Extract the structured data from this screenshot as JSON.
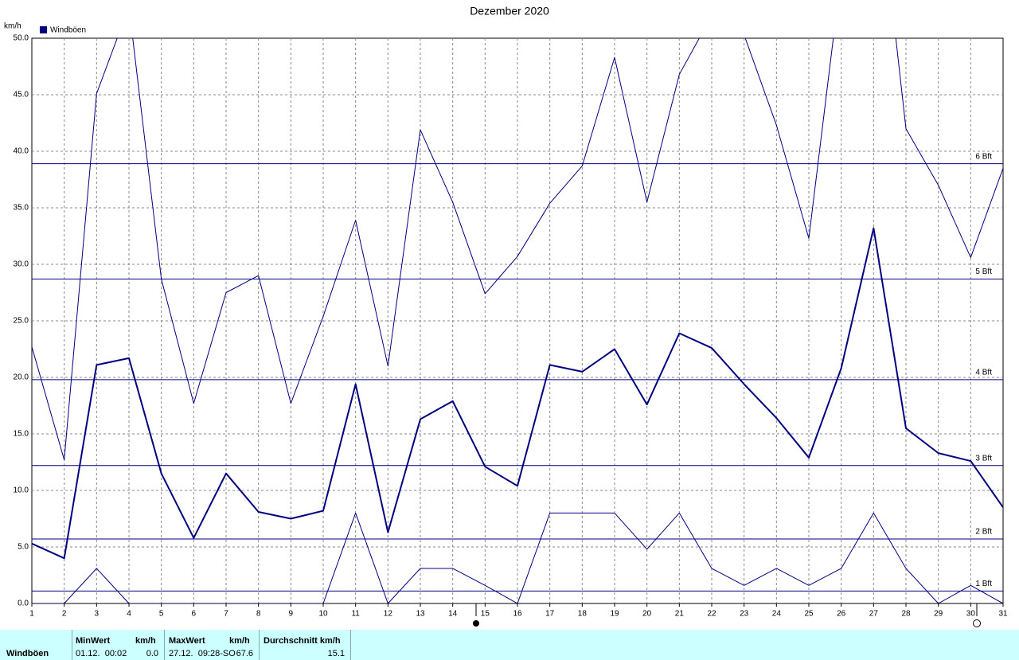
{
  "chart_data": {
    "type": "line",
    "title": "Dezember 2020",
    "y_label": "km/h",
    "legend": "Windböen",
    "x": [
      1,
      2,
      3,
      4,
      5,
      6,
      7,
      8,
      9,
      10,
      11,
      12,
      13,
      14,
      15,
      16,
      17,
      18,
      19,
      20,
      21,
      22,
      23,
      24,
      25,
      26,
      27,
      28,
      29,
      30,
      31
    ],
    "xlim": [
      1,
      31
    ],
    "xticks": [
      1,
      2,
      3,
      4,
      5,
      6,
      7,
      8,
      9,
      10,
      11,
      12,
      13,
      14,
      15,
      16,
      17,
      18,
      19,
      20,
      21,
      22,
      23,
      24,
      25,
      26,
      27,
      28,
      29,
      30,
      31
    ],
    "ylim": [
      0,
      50
    ],
    "yticks": [
      {
        "value": 0,
        "label": "0.0"
      },
      {
        "value": 5,
        "label": "5.0"
      },
      {
        "value": 10,
        "label": "10.0"
      },
      {
        "value": 15,
        "label": "15.0"
      },
      {
        "value": 20,
        "label": "20.0"
      },
      {
        "value": 25,
        "label": "25.0"
      },
      {
        "value": 30,
        "label": "30.0"
      },
      {
        "value": 35,
        "label": "35.0"
      },
      {
        "value": 40,
        "label": "40.0"
      },
      {
        "value": 45,
        "label": "45.0"
      },
      {
        "value": 50,
        "label": "50.0"
      }
    ],
    "grid": true,
    "reference_lines": [
      {
        "value": 1.1,
        "label": "1 Bft"
      },
      {
        "value": 5.7,
        "label": "2 Bft"
      },
      {
        "value": 12.2,
        "label": "3 Bft"
      },
      {
        "value": 19.8,
        "label": "4 Bft"
      },
      {
        "value": 28.7,
        "label": "5 Bft"
      },
      {
        "value": 38.9,
        "label": "6 Bft"
      }
    ],
    "series": [
      {
        "color": "#000080",
        "width": 1,
        "values": [
          22.7,
          12.7,
          45.1,
          52.8,
          28.7,
          17.7,
          27.5,
          29.0,
          17.7,
          25.4,
          33.9,
          21.0,
          41.9,
          35.5,
          27.4,
          30.7,
          35.4,
          38.7,
          48.3,
          35.5,
          46.8,
          52.0,
          50.3,
          42.3,
          32.3,
          55.7,
          67.6,
          42.0,
          37.0,
          30.6,
          38.5
        ]
      },
      {
        "color": "#000080",
        "width": 2,
        "values": [
          5.3,
          4.0,
          21.1,
          21.7,
          11.5,
          5.8,
          11.5,
          8.1,
          7.5,
          8.2,
          19.4,
          6.3,
          16.3,
          17.9,
          12.1,
          10.4,
          21.1,
          20.5,
          22.5,
          17.6,
          23.9,
          22.6,
          19.4,
          16.4,
          12.9,
          20.8,
          33.2,
          15.5,
          13.3,
          12.6,
          8.5
        ]
      },
      {
        "color": "#000080",
        "width": 1,
        "values": [
          0,
          0,
          3.1,
          0,
          0,
          0,
          0,
          0,
          0,
          0,
          8.0,
          0,
          3.1,
          3.1,
          1.6,
          0,
          8.0,
          8.0,
          8.0,
          4.8,
          8.0,
          3.1,
          1.6,
          3.1,
          1.6,
          3.1,
          8.0,
          3.1,
          0,
          1.6,
          0
        ]
      }
    ]
  },
  "table": {
    "headers": [
      [
        "MinWert",
        "km/h"
      ],
      [
        "MaxWert",
        "km/h"
      ],
      [
        "Durchschnitt km/h"
      ]
    ],
    "row": {
      "label": "Windböen",
      "min_time": "01.12.  00:02",
      "min": "0.0",
      "max_time": "27.12.  09:28-SO",
      "max": "67.6",
      "avg": "15.1"
    }
  }
}
